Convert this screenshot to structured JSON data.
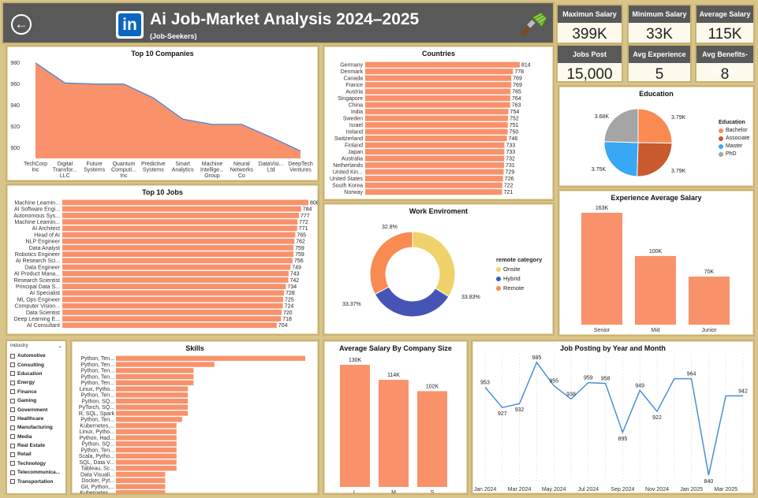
{
  "header": {
    "title": "Ai Job-Market Analysis 2024–2025",
    "subtitle": "(Job-Seekers)",
    "logo_text": "in",
    "back_icon": "back-arrow-icon",
    "brush_icon": "paint-brush-icon"
  },
  "kpis": [
    {
      "label": "Maximun Salary",
      "value": "399K"
    },
    {
      "label": "Minimum Salary",
      "value": "33K"
    },
    {
      "label": "Average Salary",
      "value": "115K"
    },
    {
      "label": "Jobs Post",
      "value": "15,000"
    },
    {
      "label": "Avg Experience",
      "value": "5"
    },
    {
      "label": "Avg Benefits-Score",
      "value": "8"
    }
  ],
  "colors": {
    "bar": "#f9926b",
    "line": "#4a8fd6",
    "area_line": "#4a86d6"
  },
  "slicer": {
    "title": "industry",
    "items": [
      "Automotive",
      "Consulting",
      "Education",
      "Energy",
      "Finance",
      "Gaming",
      "Government",
      "Healthcare",
      "Manufacturing",
      "Media",
      "Real Estate",
      "Retail",
      "Technology",
      "Telecommunica...",
      "Transportation"
    ]
  },
  "chart_data": [
    {
      "id": "top_companies",
      "type": "area",
      "title": "Top 10 Companies",
      "categories": [
        [
          "TechCorp",
          "Inc"
        ],
        [
          "Digital",
          "Transfor...",
          "LLC"
        ],
        [
          "Future",
          "Systems"
        ],
        [
          "Quantum",
          "Computi...",
          "Inc"
        ],
        [
          "Predictive",
          "Systems"
        ],
        [
          "Smart",
          "Analytics"
        ],
        [
          "Machine",
          "Intellige...",
          "Group"
        ],
        [
          "Neural",
          "Networks",
          "Co"
        ],
        [
          "DataVisi...",
          "Ltd"
        ],
        [
          "DeepTech",
          "Ventures"
        ]
      ],
      "values": [
        980,
        961,
        960,
        960,
        947,
        927,
        922,
        922,
        910,
        897
      ],
      "ylim": [
        890,
        985
      ],
      "yticks": [
        900,
        920,
        940,
        960,
        980
      ]
    },
    {
      "id": "countries",
      "type": "bar",
      "orientation": "horizontal",
      "title": "Countries",
      "categories": [
        "Germany",
        "Denmark",
        "Canada",
        "France",
        "Austria",
        "Singapore",
        "China",
        "India",
        "Sweden",
        "Israel",
        "Ireland",
        "Switzerland",
        "Finland",
        "Japan",
        "Australia",
        "Netherlands",
        "United Kin...",
        "United States",
        "South Korea",
        "Norway"
      ],
      "values": [
        814,
        778,
        769,
        769,
        765,
        764,
        763,
        754,
        752,
        751,
        750,
        746,
        733,
        733,
        732,
        731,
        729,
        726,
        722,
        721
      ]
    },
    {
      "id": "top_jobs",
      "type": "bar",
      "orientation": "horizontal",
      "title": "Top 10 Jobs",
      "categories": [
        "Machine Learnin...",
        "AI Software Engi...",
        "Autonomous Sys...",
        "Machine Learnin...",
        "AI Architect",
        "Head of AI",
        "NLP Engineer",
        "Data Analyst",
        "Robotics Engineer",
        "AI Research Sci...",
        "Data Engineer",
        "AI Product Mana...",
        "Research Scientist",
        "Principal Data S...",
        "AI Specialist",
        "ML Ops Engineer",
        "Computer Vision...",
        "Data Scientist",
        "Deep Learning E...",
        "AI Consultant"
      ],
      "values": [
        808,
        784,
        777,
        772,
        771,
        765,
        762,
        759,
        759,
        756,
        749,
        743,
        742,
        734,
        728,
        725,
        724,
        720,
        718,
        704
      ]
    },
    {
      "id": "work_environment",
      "type": "pie",
      "title": "Work Enviroment",
      "legend_title": "remote category",
      "labels": [
        "Onsite",
        "Hybrid",
        "Remote"
      ],
      "values": [
        33.83,
        33.37,
        32.8
      ],
      "value_labels": [
        "33.83%",
        "33.37%",
        "32.8%"
      ],
      "colors": [
        "#f0d26a",
        "#4655b5",
        "#f98a52"
      ]
    },
    {
      "id": "education",
      "type": "pie",
      "title": "Education",
      "legend_title": "Education",
      "labels": [
        "Bachelor",
        "Associate",
        "Master",
        "PhD"
      ],
      "values": [
        3.79,
        3.79,
        3.75,
        3.68
      ],
      "value_labels": [
        "3.79K",
        "3.79K",
        "3.75K",
        "3.68K"
      ],
      "colors": [
        "#f98a52",
        "#c85a2e",
        "#38a7f5",
        "#a5a5a5"
      ]
    },
    {
      "id": "experience_salary",
      "type": "bar",
      "title": "Experience Average Salary",
      "categories": [
        "Senior",
        "Mid",
        "Junior"
      ],
      "values": [
        163,
        100,
        70
      ],
      "value_labels": [
        "163K",
        "100K",
        "70K"
      ]
    },
    {
      "id": "skills",
      "type": "bar",
      "orientation": "horizontal",
      "title": "Skills",
      "categories": [
        "Python, Ten...",
        "Python, Ten...",
        "Python, Ten...",
        "Python, Ten...",
        "Python, Ten...",
        "Linux, Pytho...",
        "Python, Ten...",
        "Python, SQ...",
        "PyTorch, SQ...",
        "R, SQL, Spark",
        "Python, Ten...",
        "Kubernetes,...",
        "Linux, Pytho...",
        "Python, Had...",
        "Python, SQ...",
        "Python, Ten...",
        "Scala, Pytho...",
        "SQL, Data V...",
        "Tableau, Sc...",
        "Data Visuali...",
        "Docker, Pyt...",
        "Git, Python,...",
        "Kubernetes,..."
      ],
      "values": [
        10,
        5.2,
        4.1,
        4.1,
        4.1,
        3.8,
        3.8,
        3.8,
        3.8,
        3.8,
        3.5,
        3.2,
        3.2,
        3.2,
        3.2,
        3.2,
        3.2,
        3.2,
        3.2,
        2.6,
        2.6,
        2.6,
        2.6
      ]
    },
    {
      "id": "salary_company_size",
      "type": "bar",
      "title": "Average Salary By Company Size",
      "categories": [
        "L",
        "M",
        "S"
      ],
      "values": [
        130,
        114,
        102
      ],
      "value_labels": [
        "130K",
        "114K",
        "102K"
      ]
    },
    {
      "id": "job_posting_month",
      "type": "line",
      "title": "Job Posting by Year and Month",
      "x": [
        "2024-01",
        "2024-02",
        "2024-03",
        "2024-04",
        "2024-05",
        "2024-06",
        "2024-07",
        "2024-08",
        "2024-09",
        "2024-10",
        "2024-11",
        "2024-12",
        "2025-01",
        "2025-02",
        "2025-03",
        "2025-04"
      ],
      "values": [
        953,
        927,
        932,
        985,
        955,
        938,
        959,
        958,
        895,
        949,
        922,
        964,
        964,
        840,
        942,
        942
      ],
      "value_labels": [
        "953",
        "927",
        "932",
        "985",
        "955",
        "938",
        "959",
        "958",
        "895",
        "949",
        "922",
        "",
        "964",
        "840",
        "",
        "942"
      ],
      "xtick_labels": [
        "Jan 2024",
        "Mar 2024",
        "May 2024",
        "Jul 2024",
        "Sep 2024",
        "Nov 2024",
        "Jan 2025",
        "Mar 2025"
      ],
      "ylim": [
        835,
        992
      ]
    }
  ]
}
